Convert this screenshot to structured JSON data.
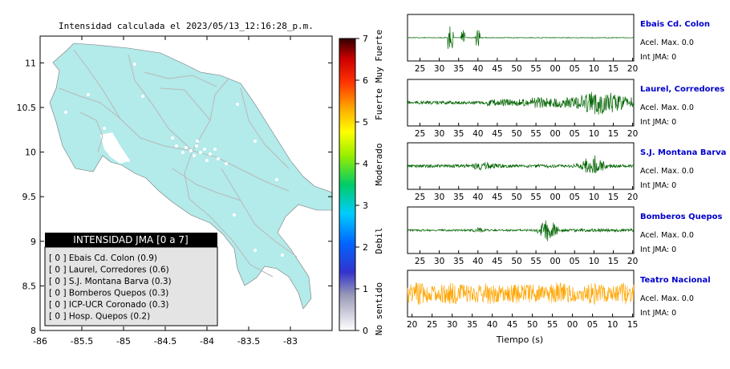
{
  "map": {
    "title": "Intensidad calculada el 2023/05/13_12:16:28_p.m.",
    "x_ticks": [
      "-86",
      "-85.5",
      "-85",
      "-84.5",
      "-84",
      "-83.5",
      "-83"
    ],
    "y_ticks": [
      "11",
      "10.5",
      "10",
      "9.5",
      "9",
      "8.5",
      "8"
    ],
    "xlim": [
      -86,
      -82.5
    ],
    "ylim": [
      8,
      11.3
    ],
    "land_color": "#b3eaea",
    "legend": {
      "title": "INTENSIDAD JMA [0 a 7]",
      "items": [
        "[ 0 ]  Ebais Cd. Colon (0.9)",
        "[ 0 ]  Laurel, Corredores (0.6)",
        "[ 0 ]  S.J. Montana Barva (0.3)",
        "[ 0 ]  Bomberos Quepos (0.3)",
        "[ 0 ]  ICP-UCR Coronado (0.3)",
        "[ 0 ]  Hosp. Quepos (0.2)"
      ]
    }
  },
  "colorbar": {
    "ticks": [
      "0",
      "1",
      "2",
      "3",
      "4",
      "5",
      "6",
      "7"
    ],
    "labels": [
      "No sentido",
      "Debil",
      "Moderado",
      "Fuerte",
      "Muy Fuerte"
    ]
  },
  "waveforms": {
    "xlabel": "Tiempo (s)",
    "panels": [
      {
        "station": "Ebais Cd. Colon",
        "acel": "Acel. Max. 0.0",
        "jma": "Int JMA: 0",
        "color": "#006400",
        "ticks": [
          "25",
          "30",
          "35",
          "40",
          "45",
          "50",
          "55",
          "00",
          "05",
          "10",
          "15",
          "20"
        ]
      },
      {
        "station": "Laurel, Corredores",
        "acel": "Acel. Max. 0.0",
        "jma": "Int JMA: 0",
        "color": "#006400",
        "ticks": [
          "25",
          "30",
          "35",
          "40",
          "45",
          "50",
          "55",
          "00",
          "05",
          "10",
          "15",
          "20"
        ]
      },
      {
        "station": "S.J. Montana Barva",
        "acel": "Acel. Max. 0.0",
        "jma": "Int JMA: 0",
        "color": "#006400",
        "ticks": [
          "25",
          "30",
          "35",
          "40",
          "45",
          "50",
          "55",
          "00",
          "05",
          "10",
          "15",
          "20"
        ]
      },
      {
        "station": "Bomberos Quepos",
        "acel": "Acel. Max. 0.0",
        "jma": "Int JMA: 0",
        "color": "#006400",
        "ticks": [
          "25",
          "30",
          "35",
          "40",
          "45",
          "50",
          "55",
          "00",
          "05",
          "10",
          "15",
          "20"
        ]
      },
      {
        "station": "Teatro Nacional",
        "acel": "Acel. Max. 0.0",
        "jma": "Int JMA: 0",
        "color": "#ffa500",
        "ticks": [
          "20",
          "25",
          "30",
          "35",
          "40",
          "45",
          "50",
          "55",
          "00",
          "05",
          "10",
          "15"
        ]
      }
    ]
  },
  "chart_data": {
    "type": "line",
    "title": "Intensidad calculada el 2023/05/13_12:16:28_p.m.",
    "xlabel": "Tiempo (s)",
    "series": [
      {
        "name": "Ebais Cd. Colon",
        "peak_acceleration": 0.0,
        "jma_intensity": 0
      },
      {
        "name": "Laurel, Corredores",
        "peak_acceleration": 0.0,
        "jma_intensity": 0
      },
      {
        "name": "S.J. Montana Barva",
        "peak_acceleration": 0.0,
        "jma_intensity": 0
      },
      {
        "name": "Bomberos Quepos",
        "peak_acceleration": 0.0,
        "jma_intensity": 0
      },
      {
        "name": "Teatro Nacional",
        "peak_acceleration": 0.0,
        "jma_intensity": 0
      }
    ],
    "legend_items": [
      {
        "station": "Ebais Cd. Colon",
        "class": 0,
        "value": 0.9
      },
      {
        "station": "Laurel, Corredores",
        "class": 0,
        "value": 0.6
      },
      {
        "station": "S.J. Montana Barva",
        "class": 0,
        "value": 0.3
      },
      {
        "station": "Bomberos Quepos",
        "class": 0,
        "value": 0.3
      },
      {
        "station": "ICP-UCR Coronado",
        "class": 0,
        "value": 0.3
      },
      {
        "station": "Hosp. Quepos",
        "class": 0,
        "value": 0.2
      }
    ],
    "legend_placement": "bottom-left"
  }
}
